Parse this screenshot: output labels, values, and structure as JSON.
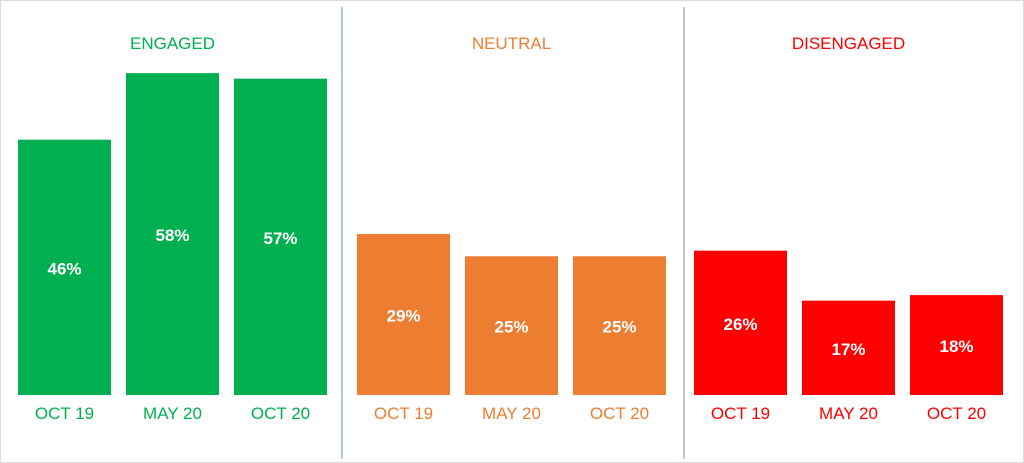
{
  "chart_data": {
    "type": "bar",
    "title": "",
    "xlabel": "",
    "ylabel": "",
    "ylim": [
      0,
      60
    ],
    "grid": false,
    "categories": [
      "OCT 19",
      "MAY 20",
      "OCT 20"
    ],
    "series": [
      {
        "name": "ENGAGED",
        "color": "#00b050",
        "values": [
          46,
          58,
          57
        ],
        "labels": [
          "46%",
          "58%",
          "57%"
        ]
      },
      {
        "name": "NEUTRAL",
        "color": "#ed7d31",
        "values": [
          29,
          25,
          25
        ],
        "labels": [
          "29%",
          "25%",
          "25%"
        ]
      },
      {
        "name": "DISENGAGED",
        "color": "#ff0000",
        "values": [
          26,
          17,
          18
        ],
        "labels": [
          "26%",
          "17%",
          "18%"
        ]
      }
    ],
    "divider_color": "#6f8fb5",
    "data_label_color": "#ffffff"
  }
}
